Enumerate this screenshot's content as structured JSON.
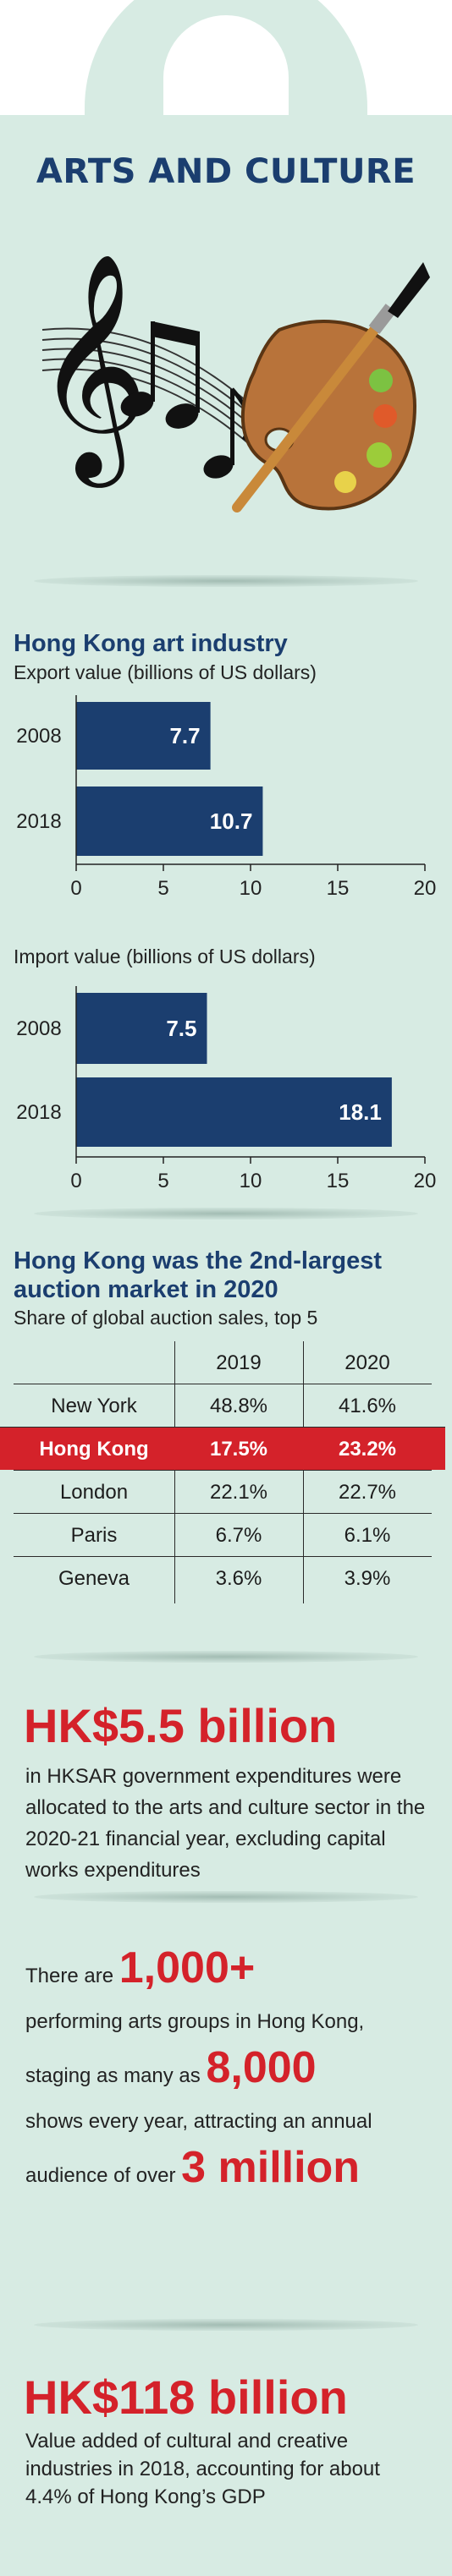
{
  "title": "ARTS AND CULTURE",
  "colors": {
    "navy": "#1b3e6f",
    "red": "#d4222a",
    "background": "#d7ebe3"
  },
  "illustration": {
    "icons": [
      "treble-clef-icon",
      "music-notes-icon",
      "paint-palette-icon",
      "paintbrush-icon"
    ]
  },
  "art_industry": {
    "heading": "Hong Kong art industry",
    "export_subtitle": "Export value (billions of US dollars)",
    "import_subtitle": "Import value (billions of US dollars)"
  },
  "chart_data": [
    {
      "type": "bar",
      "orientation": "horizontal",
      "title": "Export value (billions of US dollars)",
      "categories": [
        "2008",
        "2018"
      ],
      "values": [
        7.7,
        10.7
      ],
      "value_labels": [
        "7.7",
        "10.7"
      ],
      "xlim": [
        0,
        20
      ],
      "xticks": [
        "0",
        "5",
        "10",
        "15",
        "20"
      ],
      "grid": false,
      "bar_color": "#1b3e6f"
    },
    {
      "type": "bar",
      "orientation": "horizontal",
      "title": "Import value (billions of US dollars)",
      "categories": [
        "2008",
        "2018"
      ],
      "values": [
        7.5,
        18.1
      ],
      "value_labels": [
        "7.5",
        "18.1"
      ],
      "xlim": [
        0,
        20
      ],
      "xticks": [
        "0",
        "5",
        "10",
        "15",
        "20"
      ],
      "grid": false,
      "bar_color": "#1b3e6f"
    },
    {
      "type": "table",
      "title": "Hong Kong was the 2nd-largest auction market in 2020",
      "subtitle": "Share of global auction sales, top 5",
      "columns": [
        "",
        "2019",
        "2020"
      ],
      "rows": [
        {
          "city": "New York",
          "y2019": "48.8%",
          "y2020": "41.6%"
        },
        {
          "city": "Hong Kong",
          "y2019": "17.5%",
          "y2020": "23.2%",
          "highlight": true
        },
        {
          "city": "London",
          "y2019": "22.1%",
          "y2020": "22.7%"
        },
        {
          "city": "Paris",
          "y2019": "6.7%",
          "y2020": "6.1%"
        },
        {
          "city": "Geneva",
          "y2019": "3.6%",
          "y2020": "3.9%"
        }
      ]
    }
  ],
  "auction": {
    "heading": "Hong Kong was the 2nd-largest auction market in 2020",
    "subtitle": "Share of global auction sales, top 5",
    "col_2019": "2019",
    "col_2020": "2020"
  },
  "expenditure": {
    "value": "HK$5.5 billion",
    "text": "in HKSAR government expenditures were allocated to the arts and culture sector in the 2020-21 financial year, excluding capital works expenditures"
  },
  "performing": {
    "prefix": "There are",
    "groups": "1,000+",
    "line2": "performing arts groups in Hong Kong,",
    "line3_prefix": "staging as many as",
    "shows": "8,000",
    "line4": "shows every year, attracting an annual",
    "line5_prefix": "audience of over",
    "audience": "3 million"
  },
  "value_added": {
    "value": "HK$118 billion",
    "text": "Value added of cultural and creative industries in 2018, accounting for about 4.4% of Hong Kong’s GDP"
  }
}
